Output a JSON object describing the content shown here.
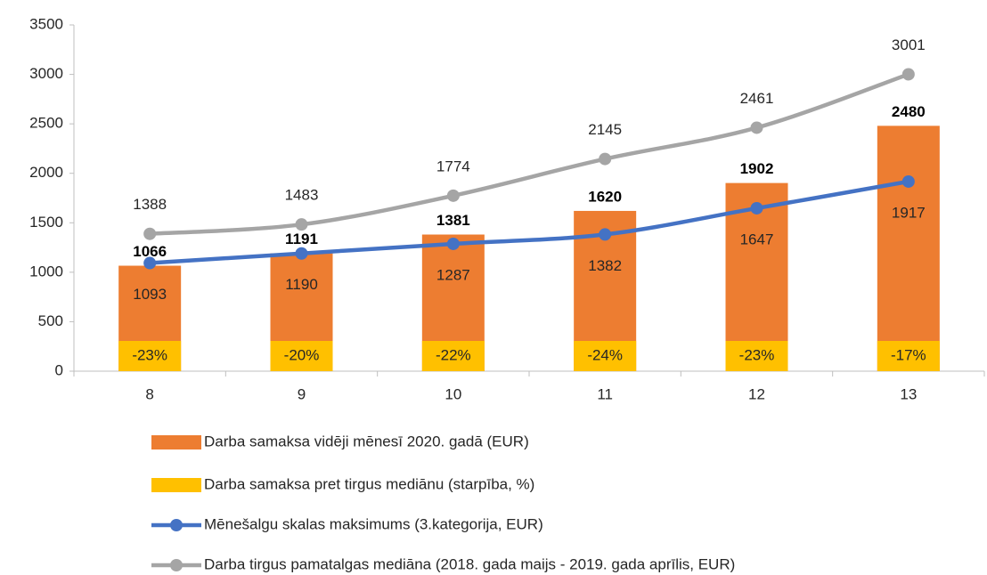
{
  "chart_data": {
    "type": "bar",
    "categories": [
      "8",
      "9",
      "10",
      "11",
      "12",
      "13"
    ],
    "ylim": [
      0,
      3500
    ],
    "yticks": [
      0,
      500,
      1000,
      1500,
      2000,
      2500,
      3000,
      3500
    ],
    "series": [
      {
        "name": "Darba samaksa vidēji mēnesī 2020. gadā (EUR)",
        "type": "bar",
        "color": "#ed7d31",
        "values": [
          1066,
          1191,
          1381,
          1620,
          1902,
          2480
        ]
      },
      {
        "name": "Darba samaksa pret tirgus mediānu (starpība, %)",
        "type": "strip",
        "color": "#ffc000",
        "values": [
          -23,
          -20,
          -22,
          -24,
          -23,
          -17
        ],
        "value_labels": [
          "-23%",
          "-20%",
          "-22%",
          "-24%",
          "-23%",
          "-17%"
        ]
      },
      {
        "name": "Mēnešalgu skalas maksimums (3.kategorija, EUR)",
        "type": "line",
        "color": "#4472c4",
        "values": [
          1093,
          1190,
          1287,
          1382,
          1647,
          1917
        ]
      },
      {
        "name": "Darba tirgus pamatalgas mediāna (2018. gada maijs - 2019. gada aprīlis, EUR)",
        "type": "line",
        "color": "#a5a5a5",
        "values": [
          1388,
          1483,
          1774,
          2145,
          2461,
          3001
        ]
      }
    ]
  }
}
